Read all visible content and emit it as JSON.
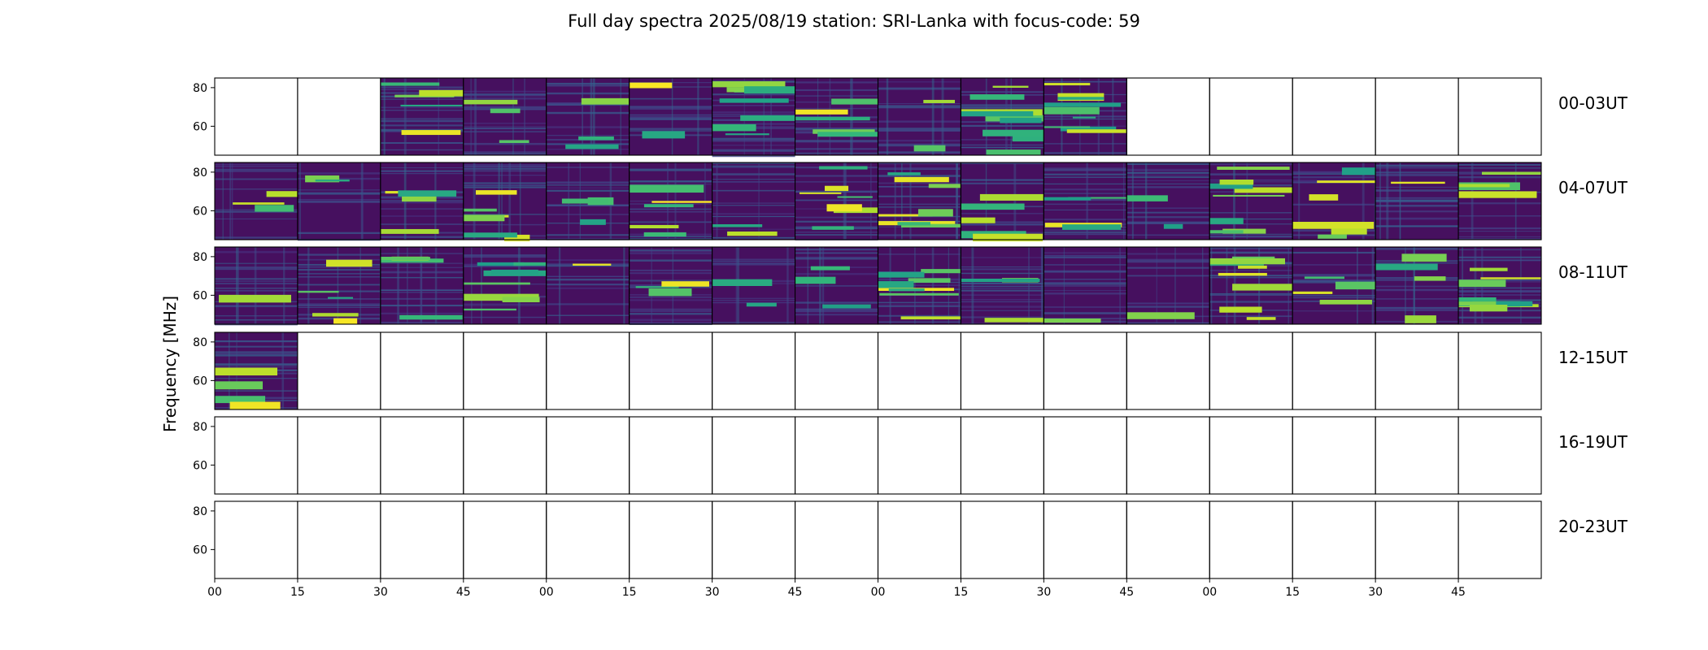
{
  "figure": {
    "title": "Full day spectra 2025/08/19 station: SRI-Lanka with focus-code: 59",
    "ylabel": "Frequency [MHz]"
  },
  "chart_data": {
    "type": "heatmap",
    "colormap": "viridis",
    "rows": [
      "00-03UT",
      "04-07UT",
      "08-11UT",
      "12-15UT",
      "16-19UT",
      "20-23UT"
    ],
    "x_tick_labels": [
      "00",
      "15",
      "30",
      "45",
      "00",
      "15",
      "30",
      "45",
      "00",
      "15",
      "30",
      "45",
      "00",
      "15",
      "30",
      "45"
    ],
    "y_ticks": [
      80,
      60
    ],
    "y_tick_labels": [
      "80",
      "60"
    ],
    "ylim": [
      45,
      85
    ],
    "panels_per_row": 16,
    "panel_minutes": 15,
    "data_availability": [
      [
        0,
        0,
        1,
        1,
        1,
        1,
        1,
        1,
        1,
        1,
        1,
        0,
        0,
        0,
        0,
        0
      ],
      [
        1,
        1,
        1,
        1,
        1,
        1,
        1,
        1,
        1,
        1,
        1,
        1,
        1,
        1,
        1,
        1
      ],
      [
        1,
        1,
        1,
        1,
        1,
        1,
        1,
        1,
        1,
        1,
        1,
        1,
        1,
        1,
        1,
        1
      ],
      [
        1,
        0,
        0,
        0,
        0,
        0,
        0,
        0,
        0,
        0,
        0,
        0,
        0,
        0,
        0,
        0
      ],
      [
        0,
        0,
        0,
        0,
        0,
        0,
        0,
        0,
        0,
        0,
        0,
        0,
        0,
        0,
        0,
        0
      ],
      [
        0,
        0,
        0,
        0,
        0,
        0,
        0,
        0,
        0,
        0,
        0,
        0,
        0,
        0,
        0,
        0
      ]
    ],
    "grid": false
  }
}
